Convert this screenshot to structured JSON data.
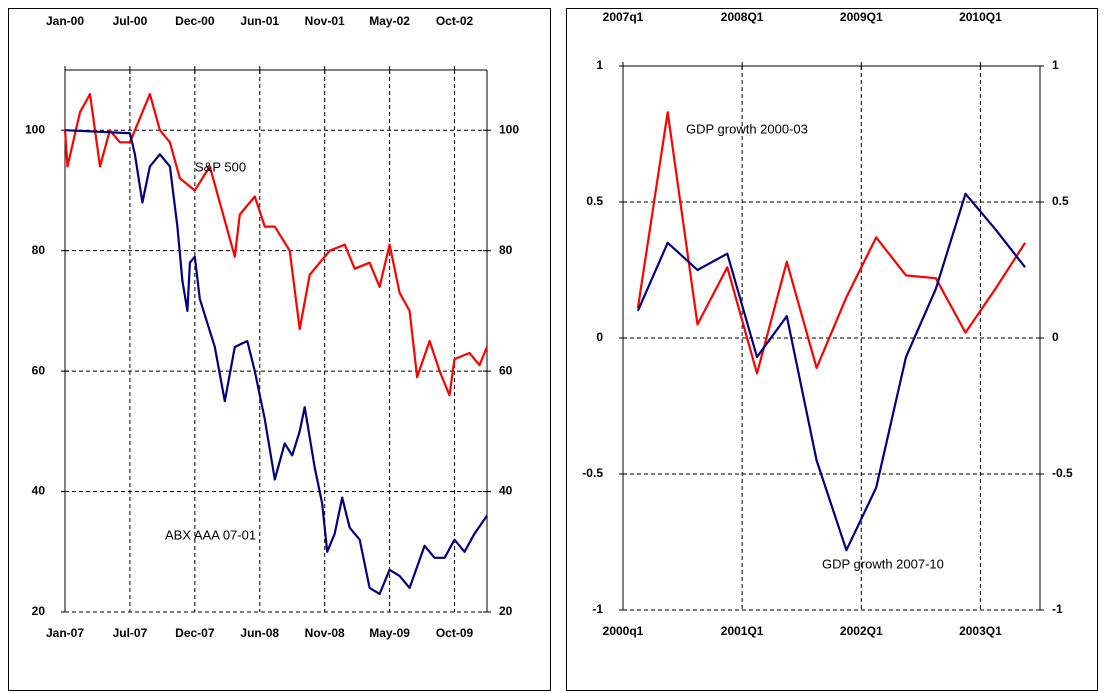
{
  "chart_data": [
    {
      "type": "line",
      "xlim": [
        0,
        169
      ],
      "xticks": [
        {
          "value": 0,
          "label": "Jan-07"
        },
        {
          "value": 26,
          "label": "Jul-07"
        },
        {
          "value": 52,
          "label": "Dec-07"
        },
        {
          "value": 78,
          "label": "Jun-08"
        },
        {
          "value": 104,
          "label": "Nov-08"
        },
        {
          "value": 130,
          "label": "May-09"
        },
        {
          "value": 156,
          "label": "Oct-09"
        }
      ],
      "x2ticks": [
        {
          "value": 0,
          "label": "Jan-00"
        },
        {
          "value": 26,
          "label": "Jul-00"
        },
        {
          "value": 52,
          "label": "Dec-00"
        },
        {
          "value": 78,
          "label": "Jun-01"
        },
        {
          "value": 104,
          "label": "Nov-01"
        },
        {
          "value": 130,
          "label": "May-02"
        },
        {
          "value": 156,
          "label": "Oct-02"
        }
      ],
      "ylim": [
        20,
        110
      ],
      "yticks": [
        20,
        40,
        60,
        80,
        100
      ],
      "y2lim": [
        20,
        110
      ],
      "y2ticks": [
        20,
        40,
        60,
        80,
        100
      ],
      "grid": true,
      "series": [
        {
          "color": "#ff0000",
          "x": [
            0,
            1,
            6,
            10,
            14,
            18,
            22,
            26,
            30,
            34,
            38,
            42,
            46,
            52,
            58,
            64,
            68,
            70,
            76,
            80,
            84,
            90,
            94,
            98,
            102,
            106,
            112,
            116,
            122,
            126,
            130,
            134,
            138,
            141,
            146,
            150,
            154,
            156,
            162,
            166,
            169
          ],
          "values": [
            100,
            94,
            103,
            106,
            94,
            100,
            98,
            98,
            102,
            106,
            100,
            98,
            92,
            90,
            94,
            85,
            79,
            86,
            89,
            84,
            84,
            80,
            67,
            76,
            78,
            80,
            81,
            77,
            78,
            74,
            81,
            73,
            70,
            59,
            65,
            60,
            56,
            62,
            63,
            61,
            64
          ]
        },
        {
          "color": "#000080",
          "x": [
            0,
            26,
            28,
            31,
            34,
            38,
            42,
            45,
            47,
            49,
            50,
            52,
            54,
            57,
            60,
            64,
            68,
            73,
            76,
            80,
            84,
            88,
            91,
            94,
            96,
            100,
            103,
            105,
            108,
            111,
            114,
            118,
            122,
            126,
            130,
            134,
            138,
            144,
            148,
            152,
            156,
            160,
            164,
            169
          ],
          "values": [
            100,
            99.5,
            96,
            88,
            94,
            96,
            94,
            84,
            75,
            70,
            78,
            79,
            72,
            68,
            64,
            55,
            64,
            65,
            60,
            52,
            42,
            48,
            46,
            50,
            54,
            44,
            38,
            30,
            33,
            39,
            34,
            32,
            24,
            23,
            27,
            26,
            24,
            31,
            29,
            29,
            32,
            30,
            33,
            36
          ]
        }
      ],
      "annotations": [
        "S&P 500",
        "ABX AAA 07-01"
      ]
    },
    {
      "type": "line",
      "xlim": [
        0,
        14
      ],
      "xticks": [
        {
          "value": 0,
          "label": "2000q1"
        },
        {
          "value": 4,
          "label": "2001Q1"
        },
        {
          "value": 8,
          "label": "2002Q1"
        },
        {
          "value": 12,
          "label": "2003Q1"
        }
      ],
      "x2ticks": [
        {
          "value": 0,
          "label": "2007q1"
        },
        {
          "value": 4,
          "label": "2008Q1"
        },
        {
          "value": 8,
          "label": "2009Q1"
        },
        {
          "value": 12,
          "label": "2010Q1"
        }
      ],
      "ylim": [
        -1,
        1
      ],
      "yticks": [
        -1,
        -0.5,
        0,
        0.5,
        1
      ],
      "y2lim": [
        -1,
        1
      ],
      "y2ticks": [
        -1,
        -0.5,
        0,
        0.5,
        1
      ],
      "grid": true,
      "series": [
        {
          "color": "#ff0000",
          "x": [
            0.5,
            1.5,
            2.5,
            3.5,
            4.5,
            5.5,
            6.5,
            7.5,
            8.5,
            9.5,
            10.5,
            11.5,
            12.5,
            13.5
          ],
          "values": [
            0.11,
            0.83,
            0.05,
            0.26,
            -0.13,
            0.28,
            -0.11,
            0.15,
            0.37,
            0.23,
            0.22,
            0.02,
            0.18,
            0.35
          ]
        },
        {
          "color": "#000080",
          "x": [
            0.5,
            1.5,
            2.5,
            3.5,
            4.5,
            5.5,
            6.5,
            7.5,
            8.5,
            9.5,
            10.5,
            11.5,
            12.5,
            13.5
          ],
          "values": [
            0.1,
            0.35,
            0.25,
            0.31,
            -0.07,
            0.08,
            -0.45,
            -0.78,
            -0.55,
            -0.07,
            0.18,
            0.53,
            0.4,
            0.26
          ]
        }
      ],
      "annotations": [
        "GDP growth 2000-03",
        "GDP growth 2007-10"
      ]
    }
  ]
}
